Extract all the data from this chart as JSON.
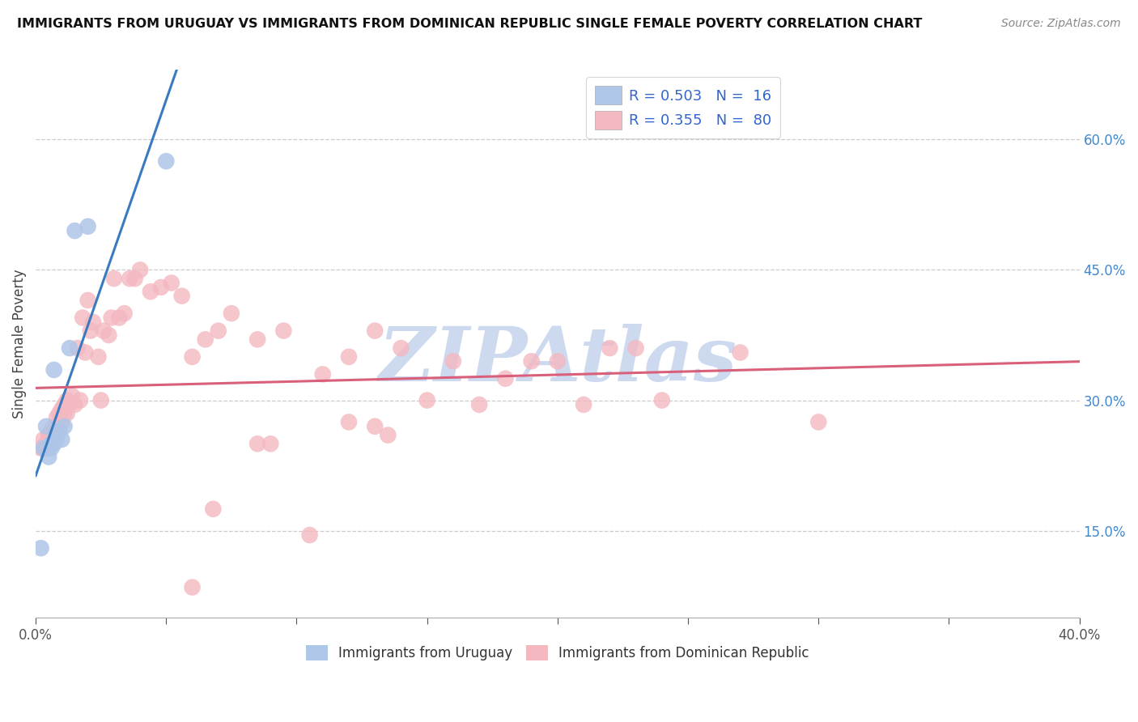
{
  "title": "IMMIGRANTS FROM URUGUAY VS IMMIGRANTS FROM DOMINICAN REPUBLIC SINGLE FEMALE POVERTY CORRELATION CHART",
  "source": "Source: ZipAtlas.com",
  "ylabel": "Single Female Poverty",
  "right_yticks": [
    0.15,
    0.3,
    0.45,
    0.6
  ],
  "right_yticklabels": [
    "15.0%",
    "30.0%",
    "45.0%",
    "60.0%"
  ],
  "legend1_color": "#aec6e8",
  "legend2_color": "#f4b8c1",
  "line1_color": "#3a7bbf",
  "line2_color": "#d9607a",
  "dot1_color": "#aec6e8",
  "dot2_color": "#f4b8c1",
  "watermark": "ZIPAtlas",
  "watermark_color": "#ccd9ef",
  "xlim": [
    0.0,
    0.4
  ],
  "ylim": [
    0.05,
    0.68
  ],
  "xtick_positions": [
    0.0,
    0.05,
    0.1,
    0.15,
    0.2,
    0.25,
    0.3,
    0.35,
    0.4
  ],
  "xtick_labels_show": [
    "0.0%",
    "",
    "",
    "",
    "",
    "",
    "",
    "",
    "40.0%"
  ],
  "legend_R1": "R = 0.503",
  "legend_N1": "N =  16",
  "legend_R2": "R = 0.355",
  "legend_N2": "N =  80",
  "uruguay_x": [
    0.002,
    0.003,
    0.004,
    0.005,
    0.006,
    0.006,
    0.007,
    0.007,
    0.008,
    0.009,
    0.01,
    0.011,
    0.013,
    0.015,
    0.02,
    0.05
  ],
  "uruguay_y": [
    0.13,
    0.245,
    0.27,
    0.235,
    0.245,
    0.25,
    0.335,
    0.25,
    0.255,
    0.265,
    0.255,
    0.27,
    0.36,
    0.495,
    0.5,
    0.575
  ],
  "dr_x": [
    0.002,
    0.003,
    0.003,
    0.004,
    0.004,
    0.004,
    0.005,
    0.005,
    0.006,
    0.006,
    0.006,
    0.007,
    0.007,
    0.007,
    0.008,
    0.008,
    0.008,
    0.009,
    0.009,
    0.01,
    0.01,
    0.011,
    0.011,
    0.012,
    0.012,
    0.013,
    0.014,
    0.015,
    0.016,
    0.017,
    0.018,
    0.019,
    0.02,
    0.021,
    0.022,
    0.024,
    0.025,
    0.026,
    0.028,
    0.029,
    0.03,
    0.032,
    0.034,
    0.036,
    0.038,
    0.04,
    0.044,
    0.048,
    0.052,
    0.056,
    0.06,
    0.065,
    0.07,
    0.075,
    0.085,
    0.095,
    0.11,
    0.12,
    0.13,
    0.14,
    0.15,
    0.16,
    0.17,
    0.18,
    0.19,
    0.2,
    0.21,
    0.22,
    0.23,
    0.24,
    0.27,
    0.3,
    0.06,
    0.105,
    0.13,
    0.085,
    0.068,
    0.09,
    0.135,
    0.12
  ],
  "dr_y": [
    0.245,
    0.255,
    0.245,
    0.245,
    0.245,
    0.25,
    0.26,
    0.26,
    0.255,
    0.26,
    0.265,
    0.26,
    0.265,
    0.27,
    0.265,
    0.27,
    0.28,
    0.27,
    0.285,
    0.275,
    0.29,
    0.285,
    0.295,
    0.285,
    0.3,
    0.295,
    0.305,
    0.295,
    0.36,
    0.3,
    0.395,
    0.355,
    0.415,
    0.38,
    0.39,
    0.35,
    0.3,
    0.38,
    0.375,
    0.395,
    0.44,
    0.395,
    0.4,
    0.44,
    0.44,
    0.45,
    0.425,
    0.43,
    0.435,
    0.42,
    0.35,
    0.37,
    0.38,
    0.4,
    0.37,
    0.38,
    0.33,
    0.35,
    0.38,
    0.36,
    0.3,
    0.345,
    0.295,
    0.325,
    0.345,
    0.345,
    0.295,
    0.36,
    0.36,
    0.3,
    0.355,
    0.275,
    0.085,
    0.145,
    0.27,
    0.25,
    0.175,
    0.25,
    0.26,
    0.275
  ]
}
